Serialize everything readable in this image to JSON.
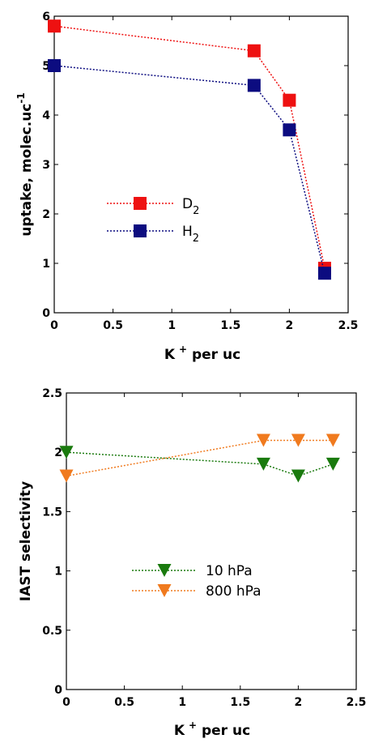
{
  "chart_data": [
    {
      "type": "line",
      "xlabel": "K",
      "xlabel_sup": "+",
      "xlabel_rest": " per uc",
      "ylabel": "uptake, molec.uc",
      "ylabel_sup": "-1",
      "xlim": [
        0,
        2.5
      ],
      "ylim": [
        0,
        6
      ],
      "xticks": [
        0,
        0.5,
        1,
        1.5,
        2,
        2.5
      ],
      "yticks": [
        0,
        1,
        2,
        3,
        4,
        5,
        6
      ],
      "xtick_labels": [
        "0",
        "0.5",
        "1",
        "1.5",
        "2",
        "2.5"
      ],
      "ytick_labels": [
        "0",
        "1",
        "2",
        "3",
        "4",
        "5",
        "6"
      ],
      "grid": false,
      "legend_position": "middle-left",
      "marker": "square",
      "series": [
        {
          "name": "D",
          "name_sub": "2",
          "color": "#ee1111",
          "x": [
            0,
            1.7,
            2.0,
            2.3
          ],
          "y": [
            5.8,
            5.3,
            4.3,
            0.9
          ]
        },
        {
          "name": "H",
          "name_sub": "2",
          "color": "#0c0c80",
          "x": [
            0,
            1.7,
            2.0,
            2.3
          ],
          "y": [
            5.0,
            4.6,
            3.7,
            0.8
          ]
        }
      ]
    },
    {
      "type": "line",
      "xlabel": "K",
      "xlabel_sup": "+",
      "xlabel_rest": " per uc",
      "ylabel": "IAST selectivity",
      "xlim": [
        0,
        2.5
      ],
      "ylim": [
        0,
        2.5
      ],
      "xticks": [
        0,
        0.5,
        1,
        1.5,
        2,
        2.5
      ],
      "yticks": [
        0,
        0.5,
        1,
        1.5,
        2,
        2.5
      ],
      "xtick_labels": [
        "0",
        "0.5",
        "1",
        "1.5",
        "2",
        "2.5"
      ],
      "ytick_labels": [
        "0",
        "0.5",
        "1",
        "1.5",
        "2",
        "2.5"
      ],
      "grid": false,
      "legend_position": "center",
      "marker": "triangle-down",
      "series": [
        {
          "name": "10 hPa",
          "color": "#1a7a0e",
          "x": [
            0,
            1.7,
            2.0,
            2.3
          ],
          "y": [
            2.0,
            1.9,
            1.8,
            1.9
          ]
        },
        {
          "name": "800 hPa",
          "color": "#f07a1e",
          "x": [
            0,
            1.7,
            2.0,
            2.3
          ],
          "y": [
            1.8,
            2.1,
            2.1,
            2.1
          ]
        }
      ]
    }
  ]
}
